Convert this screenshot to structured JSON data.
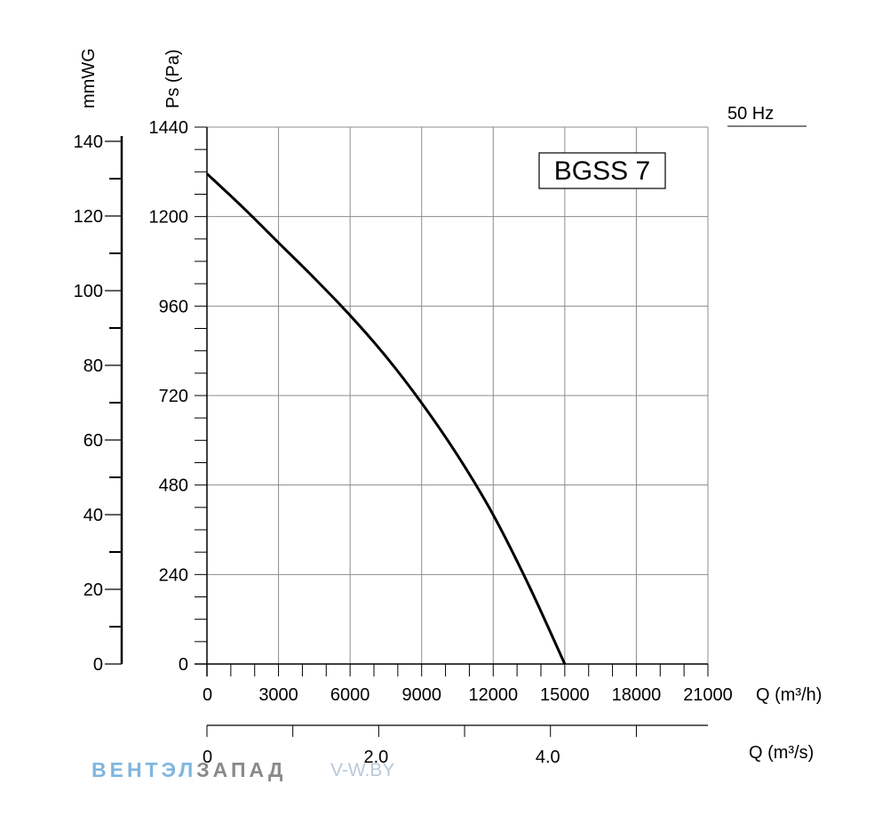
{
  "chart_data": {
    "type": "line",
    "model_label": "BGSS 7",
    "frequency_label": "50 Hz",
    "x_axis": {
      "label": "Q (m³/h)",
      "range": [
        0,
        21000
      ],
      "ticks": [
        "0",
        "3000",
        "6000",
        "9000",
        "12000",
        "15000",
        "18000",
        "21000"
      ],
      "tick_values": [
        0,
        3000,
        6000,
        9000,
        12000,
        15000,
        18000,
        21000
      ]
    },
    "x2_axis": {
      "label": "Q (m³/s)",
      "range": [
        0,
        5.8333
      ],
      "ticks": [
        "0",
        "2.0",
        "4.0"
      ],
      "tick_values": [
        0,
        2.0,
        4.0
      ]
    },
    "y_axis": {
      "label": "Ps (Pa)",
      "range": [
        0,
        1440
      ],
      "ticks": [
        "0",
        "240",
        "480",
        "720",
        "960",
        "1200",
        "1440"
      ],
      "tick_values": [
        0,
        240,
        480,
        720,
        960,
        1200,
        1440
      ]
    },
    "y2_axis": {
      "label": "mmWG",
      "range": [
        0,
        146.8
      ],
      "ticks": [
        "0",
        "20",
        "40",
        "60",
        "80",
        "100",
        "120",
        "140"
      ],
      "tick_values": [
        0,
        20,
        40,
        60,
        80,
        100,
        120,
        140
      ]
    },
    "grid": true,
    "series": [
      {
        "x": [
          0,
          1500,
          3000,
          4500,
          6000,
          7500,
          9000,
          10500,
          12000,
          13500,
          15000
        ],
        "y": [
          1315,
          1225,
          1130,
          1035,
          935,
          825,
          700,
          560,
          400,
          210,
          0
        ]
      }
    ]
  },
  "watermark": {
    "part1": "ВЕНТЭЛ",
    "part2": "ЗАПАД",
    "site": "V-W.BY"
  }
}
